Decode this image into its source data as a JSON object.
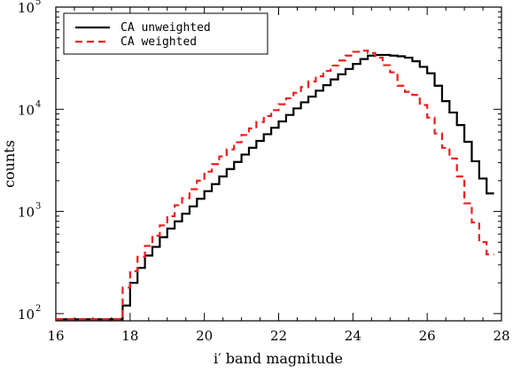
{
  "chart_data": {
    "type": "line",
    "title": "",
    "xlabel": "i′ band magnitude",
    "ylabel": "counts",
    "xlim": [
      16,
      28
    ],
    "ylim": [
      85,
      100000
    ],
    "yscale": "log",
    "step": true,
    "grid": false,
    "legend_position": "top-left",
    "x_ticks": [
      16,
      18,
      20,
      22,
      24,
      26,
      28
    ],
    "y_ticks": [
      {
        "value": 100,
        "base": "10",
        "exp": "2"
      },
      {
        "value": 1000,
        "base": "10",
        "exp": "3"
      },
      {
        "value": 10000,
        "base": "10",
        "exp": "4"
      },
      {
        "value": 100000,
        "base": "10",
        "exp": "5"
      }
    ],
    "bin_width": 0.2,
    "series": [
      {
        "name": "CA unweighted",
        "color": "#000000",
        "dash": "solid",
        "x": [
          17.8,
          18.0,
          18.2,
          18.4,
          18.6,
          18.8,
          19.0,
          19.2,
          19.4,
          19.6,
          19.8,
          20.0,
          20.2,
          20.4,
          20.6,
          20.8,
          21.0,
          21.2,
          21.4,
          21.6,
          21.8,
          22.0,
          22.2,
          22.4,
          22.6,
          22.8,
          23.0,
          23.2,
          23.4,
          23.6,
          23.8,
          24.0,
          24.2,
          24.4,
          24.6,
          24.8,
          25.0,
          25.2,
          25.4,
          25.6,
          25.8,
          26.0,
          26.2,
          26.4,
          26.6,
          26.8,
          27.0,
          27.2,
          27.4,
          27.6
        ],
        "values": [
          120,
          200,
          280,
          370,
          450,
          560,
          680,
          800,
          950,
          1120,
          1330,
          1580,
          1850,
          2200,
          2600,
          3050,
          3600,
          4200,
          4900,
          5700,
          6600,
          7600,
          8800,
          10200,
          11700,
          13300,
          15200,
          17200,
          19600,
          22000,
          24800,
          27800,
          31000,
          33500,
          34000,
          34000,
          33500,
          33000,
          32000,
          29500,
          26000,
          22500,
          17000,
          12000,
          9300,
          7000,
          4800,
          3100,
          2100,
          1500
        ]
      },
      {
        "name": "CA weighted",
        "color": "#ee1c1c",
        "dash": "dashed",
        "x": [
          17.8,
          18.0,
          18.2,
          18.4,
          18.6,
          18.8,
          19.0,
          19.2,
          19.4,
          19.6,
          19.8,
          20.0,
          20.2,
          20.4,
          20.6,
          20.8,
          21.0,
          21.2,
          21.4,
          21.6,
          21.8,
          22.0,
          22.2,
          22.4,
          22.6,
          22.8,
          23.0,
          23.2,
          23.4,
          23.6,
          23.8,
          24.0,
          24.2,
          24.4,
          24.6,
          24.8,
          25.0,
          25.2,
          25.4,
          25.6,
          25.8,
          26.0,
          26.2,
          26.4,
          26.6,
          26.8,
          27.0,
          27.2,
          27.4,
          27.6
        ],
        "values": [
          180,
          260,
          360,
          460,
          580,
          730,
          900,
          1150,
          1350,
          1650,
          2000,
          2450,
          2900,
          3450,
          4050,
          4750,
          5600,
          6500,
          7500,
          8600,
          9800,
          11200,
          12800,
          14500,
          16500,
          18700,
          21000,
          23700,
          26800,
          30000,
          33500,
          36500,
          37500,
          35500,
          32000,
          27000,
          23000,
          17000,
          14800,
          13800,
          11000,
          8300,
          5800,
          4200,
          3300,
          2200,
          1200,
          780,
          500,
          380
        ]
      }
    ],
    "floor_segments": [
      {
        "series": "CA unweighted",
        "x": [
          16.0,
          17.8
        ],
        "value": 88
      },
      {
        "series": "CA weighted",
        "x": [
          16.0,
          17.8
        ],
        "value": 88
      }
    ]
  }
}
